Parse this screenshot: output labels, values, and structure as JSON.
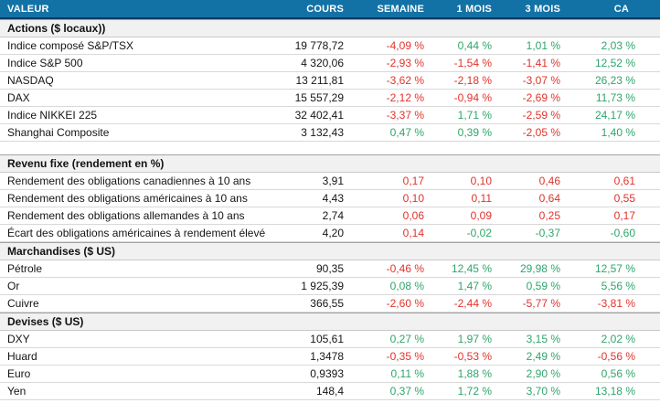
{
  "chart_data": {
    "type": "table",
    "columns": [
      "VALEUR",
      "COURS",
      "SEMAINE",
      "1 MOIS",
      "3 MOIS",
      "CA"
    ],
    "colors": {
      "header_bg": "#1272A6",
      "header_border": "#17375D",
      "section_bg": "#F1F1F1",
      "positive_text": "#2FA56C",
      "negative_text": "#E1332B"
    },
    "sections": [
      {
        "title": "Actions ($ locaux))",
        "spacer_after": true,
        "rows": [
          {
            "label": "Indice composé S&P/TSX",
            "cours": "19 778,72",
            "cells": [
              {
                "text": "-4,09 %",
                "tone": "negative"
              },
              {
                "text": "0,44 %",
                "tone": "positive"
              },
              {
                "text": "1,01 %",
                "tone": "positive"
              },
              {
                "text": "2,03 %",
                "tone": "positive"
              }
            ]
          },
          {
            "label": "Indice S&P 500",
            "cours": "4 320,06",
            "cells": [
              {
                "text": "-2,93 %",
                "tone": "negative"
              },
              {
                "text": "-1,54 %",
                "tone": "negative"
              },
              {
                "text": "-1,41 %",
                "tone": "negative"
              },
              {
                "text": "12,52 %",
                "tone": "positive"
              }
            ]
          },
          {
            "label": "NASDAQ",
            "cours": "13 211,81",
            "cells": [
              {
                "text": "-3,62 %",
                "tone": "negative"
              },
              {
                "text": "-2,18 %",
                "tone": "negative"
              },
              {
                "text": "-3,07 %",
                "tone": "negative"
              },
              {
                "text": "26,23 %",
                "tone": "positive"
              }
            ]
          },
          {
            "label": "DAX",
            "cours": "15 557,29",
            "cells": [
              {
                "text": "-2,12 %",
                "tone": "negative"
              },
              {
                "text": "-0,94 %",
                "tone": "negative"
              },
              {
                "text": "-2,69 %",
                "tone": "negative"
              },
              {
                "text": "11,73 %",
                "tone": "positive"
              }
            ]
          },
          {
            "label": "Indice NIKKEI 225",
            "cours": "32 402,41",
            "cells": [
              {
                "text": "-3,37 %",
                "tone": "negative"
              },
              {
                "text": "1,71 %",
                "tone": "positive"
              },
              {
                "text": "-2,59 %",
                "tone": "negative"
              },
              {
                "text": "24,17 %",
                "tone": "positive"
              }
            ]
          },
          {
            "label": "Shanghai Composite",
            "cours": "3 132,43",
            "cells": [
              {
                "text": "0,47 %",
                "tone": "positive"
              },
              {
                "text": "0,39 %",
                "tone": "positive"
              },
              {
                "text": "-2,05 %",
                "tone": "negative"
              },
              {
                "text": "1,40 %",
                "tone": "positive"
              }
            ]
          }
        ]
      },
      {
        "title": "Revenu fixe (rendement en %)",
        "spacer_after": false,
        "rows": [
          {
            "label": "Rendement des obligations canadiennes à 10 ans",
            "cours": "3,91",
            "cells": [
              {
                "text": "0,17",
                "tone": "negative"
              },
              {
                "text": "0,10",
                "tone": "negative"
              },
              {
                "text": "0,46",
                "tone": "negative"
              },
              {
                "text": "0,61",
                "tone": "negative"
              }
            ]
          },
          {
            "label": "Rendement des obligations américaines à 10 ans",
            "cours": "4,43",
            "cells": [
              {
                "text": "0,10",
                "tone": "negative"
              },
              {
                "text": "0,11",
                "tone": "negative"
              },
              {
                "text": "0,64",
                "tone": "negative"
              },
              {
                "text": "0,55",
                "tone": "negative"
              }
            ]
          },
          {
            "label": "Rendement des obligations allemandes à 10 ans",
            "cours": "2,74",
            "cells": [
              {
                "text": "0,06",
                "tone": "negative"
              },
              {
                "text": "0,09",
                "tone": "negative"
              },
              {
                "text": "0,25",
                "tone": "negative"
              },
              {
                "text": "0,17",
                "tone": "negative"
              }
            ]
          },
          {
            "label": "Écart des obligations américaines à rendement élevé",
            "cours": "4,20",
            "cells": [
              {
                "text": "0,14",
                "tone": "negative"
              },
              {
                "text": "-0,02",
                "tone": "positive"
              },
              {
                "text": "-0,37",
                "tone": "positive"
              },
              {
                "text": "-0,60",
                "tone": "positive"
              }
            ]
          }
        ]
      },
      {
        "title": "Marchandises ($ US)",
        "spacer_after": false,
        "rows": [
          {
            "label": "Pétrole",
            "cours": "90,35",
            "cells": [
              {
                "text": "-0,46 %",
                "tone": "negative"
              },
              {
                "text": "12,45 %",
                "tone": "positive"
              },
              {
                "text": "29,98 %",
                "tone": "positive"
              },
              {
                "text": "12,57 %",
                "tone": "positive"
              }
            ]
          },
          {
            "label": "Or",
            "cours": "1 925,39",
            "cells": [
              {
                "text": "0,08 %",
                "tone": "positive"
              },
              {
                "text": "1,47 %",
                "tone": "positive"
              },
              {
                "text": "0,59 %",
                "tone": "positive"
              },
              {
                "text": "5,56 %",
                "tone": "positive"
              }
            ]
          },
          {
            "label": "Cuivre",
            "cours": "366,55",
            "cells": [
              {
                "text": "-2,60 %",
                "tone": "negative"
              },
              {
                "text": "-2,44 %",
                "tone": "negative"
              },
              {
                "text": "-5,77 %",
                "tone": "negative"
              },
              {
                "text": "-3,81 %",
                "tone": "negative"
              }
            ]
          }
        ]
      },
      {
        "title": "Devises ($ US)",
        "spacer_after": false,
        "rows": [
          {
            "label": "DXY",
            "cours": "105,61",
            "cells": [
              {
                "text": "0,27 %",
                "tone": "positive"
              },
              {
                "text": "1,97 %",
                "tone": "positive"
              },
              {
                "text": "3,15 %",
                "tone": "positive"
              },
              {
                "text": "2,02 %",
                "tone": "positive"
              }
            ]
          },
          {
            "label": "Huard",
            "cours": "1,3478",
            "cells": [
              {
                "text": "-0,35 %",
                "tone": "negative"
              },
              {
                "text": "-0,53 %",
                "tone": "negative"
              },
              {
                "text": "2,49 %",
                "tone": "positive"
              },
              {
                "text": "-0,56 %",
                "tone": "negative"
              }
            ]
          },
          {
            "label": "Euro",
            "cours": "0,9393",
            "cells": [
              {
                "text": "0,11 %",
                "tone": "positive"
              },
              {
                "text": "1,88 %",
                "tone": "positive"
              },
              {
                "text": "2,90 %",
                "tone": "positive"
              },
              {
                "text": "0,56 %",
                "tone": "positive"
              }
            ]
          },
          {
            "label": "Yen",
            "cours": "148,4",
            "cells": [
              {
                "text": "0,37 %",
                "tone": "positive"
              },
              {
                "text": "1,72 %",
                "tone": "positive"
              },
              {
                "text": "3,70 %",
                "tone": "positive"
              },
              {
                "text": "13,18 %",
                "tone": "positive"
              }
            ]
          }
        ]
      }
    ]
  }
}
